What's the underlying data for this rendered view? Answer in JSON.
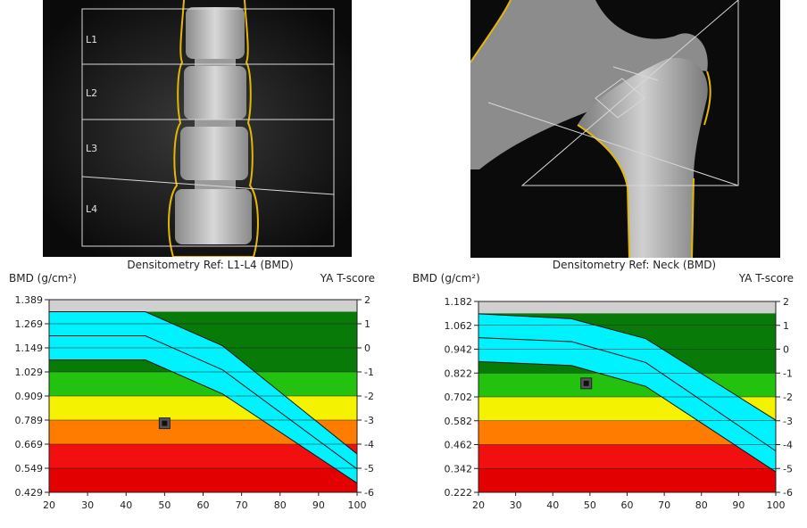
{
  "xrays": {
    "spine": {
      "labels": [
        "L1",
        "L2",
        "L3",
        "L4"
      ]
    }
  },
  "chart_data": [
    {
      "type": "area",
      "title": "Densitometry Ref: L1-L4 (BMD)",
      "ylabel": "BMD (g/cm²)",
      "y2label": "YA T-score",
      "x": [
        20,
        30,
        40,
        50,
        60,
        70,
        80,
        90,
        100
      ],
      "xlim": [
        20,
        100
      ],
      "ylim": [
        0.429,
        1.389
      ],
      "yticks": [
        "1.389",
        "1.269",
        "1.149",
        "1.029",
        "0.909",
        "0.789",
        "0.669",
        "0.549",
        "0.429"
      ],
      "tscore_ticks": [
        "2",
        "1",
        "0",
        "-1",
        "-2",
        "-3",
        "-4",
        "-5",
        "-6"
      ],
      "zones": [
        {
          "from": 1.029,
          "to": 1.329,
          "color": "#077a07"
        },
        {
          "from": 0.909,
          "to": 1.029,
          "color": "#22c20f"
        },
        {
          "from": 0.789,
          "to": 0.909,
          "color": "#f4f200"
        },
        {
          "from": 0.669,
          "to": 0.789,
          "color": "#ff7c00"
        },
        {
          "from": 0.549,
          "to": 0.669,
          "color": "#f20f0f"
        },
        {
          "from": 0.429,
          "to": 0.549,
          "color": "#e30000"
        }
      ],
      "reference_band": {
        "color": "#00f2ff",
        "x": [
          20,
          45,
          65,
          100
        ],
        "upper": [
          1.329,
          1.329,
          1.16,
          0.62
        ],
        "mean": [
          1.209,
          1.209,
          1.04,
          0.545
        ],
        "lower": [
          1.089,
          1.089,
          0.92,
          0.475
        ]
      },
      "patient": {
        "x": 50,
        "y": 0.773
      }
    },
    {
      "type": "area",
      "title": "Densitometry Ref: Neck (BMD)",
      "ylabel": "BMD (g/cm²)",
      "y2label": "YA T-score",
      "x": [
        20,
        30,
        40,
        50,
        60,
        70,
        80,
        90,
        100
      ],
      "xlim": [
        20,
        100
      ],
      "ylim": [
        0.222,
        1.182
      ],
      "yticks": [
        "1.182",
        "1.062",
        "0.942",
        "0.822",
        "0.702",
        "0.582",
        "0.462",
        "0.342",
        "0.222"
      ],
      "tscore_ticks": [
        "2",
        "1",
        "0",
        "-1",
        "-2",
        "-3",
        "-4",
        "-5",
        "-6"
      ],
      "zones": [
        {
          "from": 0.822,
          "to": 1.122,
          "color": "#077a07"
        },
        {
          "from": 0.702,
          "to": 0.822,
          "color": "#22c20f"
        },
        {
          "from": 0.582,
          "to": 0.702,
          "color": "#f4f200"
        },
        {
          "from": 0.462,
          "to": 0.582,
          "color": "#ff7c00"
        },
        {
          "from": 0.342,
          "to": 0.462,
          "color": "#f20f0f"
        },
        {
          "from": 0.222,
          "to": 0.342,
          "color": "#e30000"
        }
      ],
      "reference_band": {
        "color": "#00f2ff",
        "x": [
          20,
          45,
          65,
          100
        ],
        "upper": [
          1.12,
          1.095,
          0.995,
          0.585
        ],
        "mean": [
          1.0,
          0.98,
          0.875,
          0.43
        ],
        "lower": [
          0.88,
          0.86,
          0.755,
          0.325
        ]
      },
      "patient": {
        "x": 49,
        "y": 0.77
      }
    }
  ]
}
